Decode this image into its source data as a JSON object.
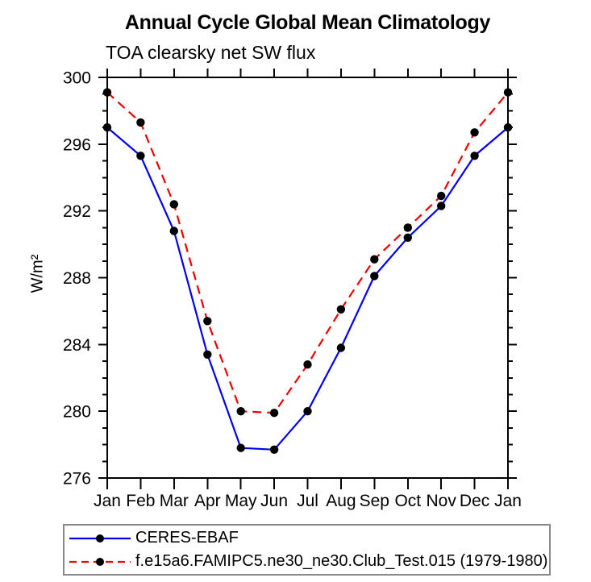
{
  "chart_data": {
    "type": "line",
    "title": "Annual Cycle Global Mean Climatology",
    "subtitle": "TOA clearsky net SW flux",
    "xlabel": "",
    "ylabel": "W/m²",
    "categories": [
      "Jan",
      "Feb",
      "Mar",
      "Apr",
      "May",
      "Jun",
      "Jul",
      "Aug",
      "Sep",
      "Oct",
      "Nov",
      "Dec",
      "Jan"
    ],
    "ylim": [
      276,
      300
    ],
    "ytick_major": [
      276,
      280,
      284,
      288,
      292,
      296,
      300
    ],
    "ytick_minor_step": 1,
    "grid": false,
    "legend_position": "bottom",
    "axis_color": "#000000",
    "marker_shape": "filled-circle",
    "series": [
      {
        "name": "CERES-EBAF",
        "color": "#0000ee",
        "style": "solid",
        "marker_color": "#000000",
        "values": [
          297.0,
          295.3,
          290.8,
          283.4,
          277.8,
          277.7,
          280.0,
          283.8,
          288.1,
          290.4,
          292.3,
          295.3,
          297.0
        ]
      },
      {
        "name": "f.e15a6.FAMIPC5.ne30_ne30.Club_Test.015 (1979-1980)",
        "color": "#ee0000",
        "style": "dashed",
        "marker_color": "#000000",
        "values": [
          299.1,
          297.3,
          292.4,
          285.4,
          280.0,
          279.9,
          282.8,
          286.1,
          289.1,
          291.0,
          292.9,
          296.7,
          299.1
        ]
      }
    ]
  }
}
